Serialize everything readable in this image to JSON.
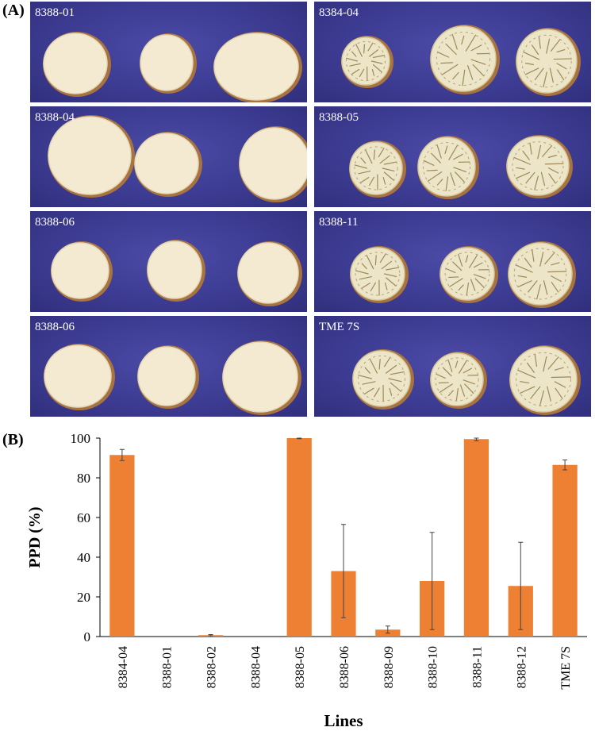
{
  "figure": {
    "panel_a_label": "(A)",
    "panel_b_label": "(B)"
  },
  "photos": [
    {
      "label": "8388-01",
      "root_type": "white"
    },
    {
      "label": "8384-04",
      "root_type": "discolored"
    },
    {
      "label": "8388-04",
      "root_type": "white"
    },
    {
      "label": "8388-05",
      "root_type": "discolored"
    },
    {
      "label": "8388-06",
      "root_type": "white"
    },
    {
      "label": "8388-11",
      "root_type": "discolored"
    },
    {
      "label": "8388-06",
      "root_type": "white"
    },
    {
      "label": "TME 7S",
      "root_type": "discolored"
    }
  ],
  "chart_data": {
    "type": "bar",
    "categories": [
      "8384-04",
      "8388-01",
      "8388-02",
      "8388-04",
      "8388-05",
      "8388-06",
      "8388-09",
      "8388-10",
      "8388-11",
      "8388-12",
      "TME 7S"
    ],
    "values": [
      91.5,
      0,
      0.7,
      0,
      100,
      33,
      3.5,
      28,
      99.5,
      25.5,
      86.5
    ],
    "errors": [
      2.8,
      0,
      0.3,
      0,
      0.3,
      23.5,
      1.8,
      24.5,
      0.8,
      22,
      2.5
    ],
    "xlabel": "Lines",
    "ylabel": "PPD (%)",
    "ylim": [
      0,
      100
    ],
    "yticks": [
      0,
      20,
      40,
      60,
      80,
      100
    ],
    "bar_color": "#ed8033",
    "grid": false
  }
}
